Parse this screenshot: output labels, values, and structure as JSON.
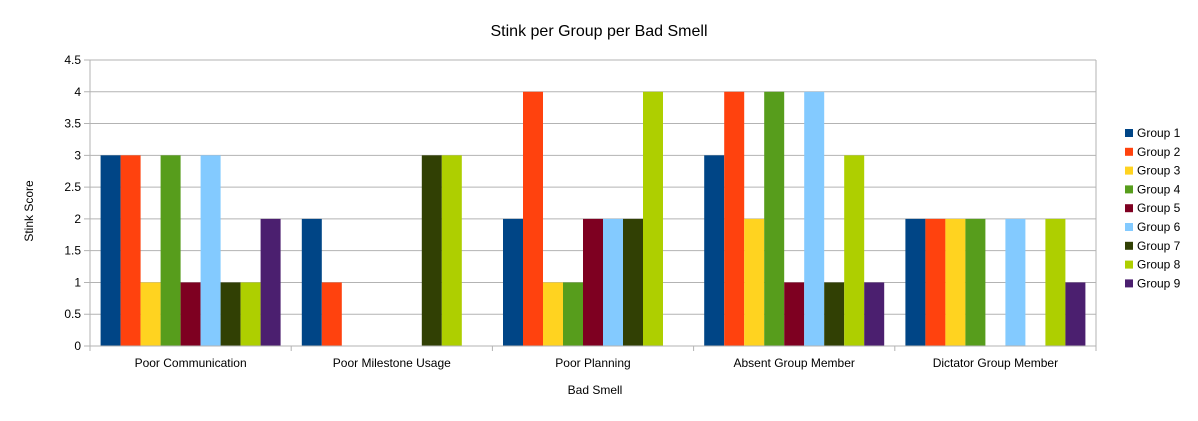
{
  "chart_data": {
    "type": "bar",
    "title": "Stink per Group per Bad Smell",
    "xlabel": "Bad Smell",
    "ylabel": "Stink Score",
    "ylim": [
      0,
      4.5
    ],
    "yticks": [
      "0",
      "0.5",
      "1",
      "1.5",
      "2",
      "2.5",
      "3",
      "3.5",
      "4",
      "4.5"
    ],
    "grid": true,
    "legend_position": "right",
    "categories": [
      "Poor Communication",
      "Poor Milestone Usage",
      "Poor Planning",
      "Absent Group Member",
      "Dictator Group Member"
    ],
    "series": [
      {
        "name": "Group 1",
        "color": "#004586",
        "values": [
          3,
          2,
          2,
          3,
          2
        ]
      },
      {
        "name": "Group 2",
        "color": "#ff420e",
        "values": [
          3,
          1,
          4,
          4,
          2
        ]
      },
      {
        "name": "Group 3",
        "color": "#ffd320",
        "values": [
          1,
          0,
          1,
          2,
          2
        ]
      },
      {
        "name": "Group 4",
        "color": "#579d1c",
        "values": [
          3,
          0,
          1,
          4,
          2
        ]
      },
      {
        "name": "Group 5",
        "color": "#7e0021",
        "values": [
          1,
          0,
          2,
          1,
          0
        ]
      },
      {
        "name": "Group 6",
        "color": "#83caff",
        "values": [
          3,
          0,
          2,
          4,
          2
        ]
      },
      {
        "name": "Group 7",
        "color": "#314004",
        "values": [
          1,
          3,
          2,
          1,
          0
        ]
      },
      {
        "name": "Group 8",
        "color": "#aecf00",
        "values": [
          1,
          3,
          4,
          3,
          2
        ]
      },
      {
        "name": "Group 9",
        "color": "#4b1f6f",
        "values": [
          2,
          0,
          0,
          1,
          1
        ]
      }
    ]
  }
}
